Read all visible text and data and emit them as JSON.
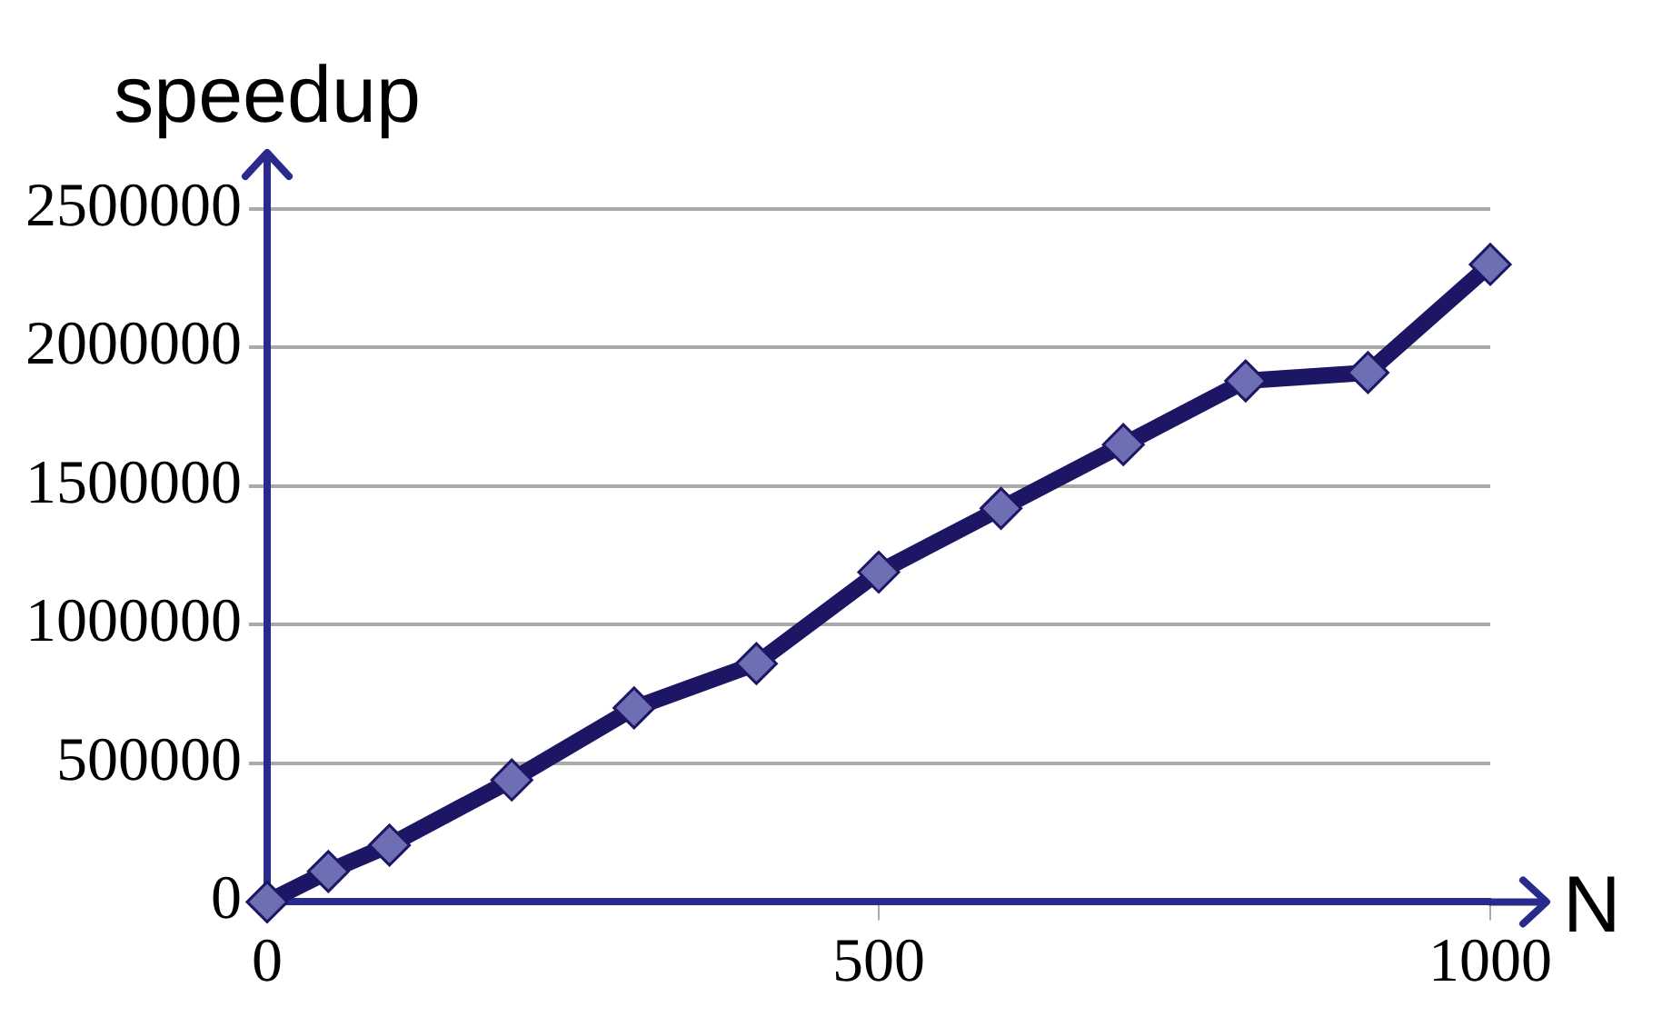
{
  "chart_data": {
    "type": "line",
    "xlabel": "N",
    "ylabel": "speedup",
    "x": [
      0,
      50,
      100,
      200,
      300,
      400,
      500,
      600,
      700,
      800,
      900,
      1000
    ],
    "series": [
      {
        "color": "#1c1664",
        "values": [
          0,
          110000,
          205000,
          440000,
          700000,
          860000,
          1190000,
          1420000,
          1650000,
          1880000,
          1910000,
          2300000
        ]
      }
    ],
    "xlim": [
      0,
      1000
    ],
    "xticks": [
      0,
      500,
      1000
    ],
    "ylim": [
      0,
      2500000
    ],
    "yticks": [
      0,
      500000,
      1000000,
      1500000,
      2000000,
      2500000
    ],
    "grid": "y",
    "legend": false,
    "marker": "diamond",
    "line_style": "solid"
  }
}
